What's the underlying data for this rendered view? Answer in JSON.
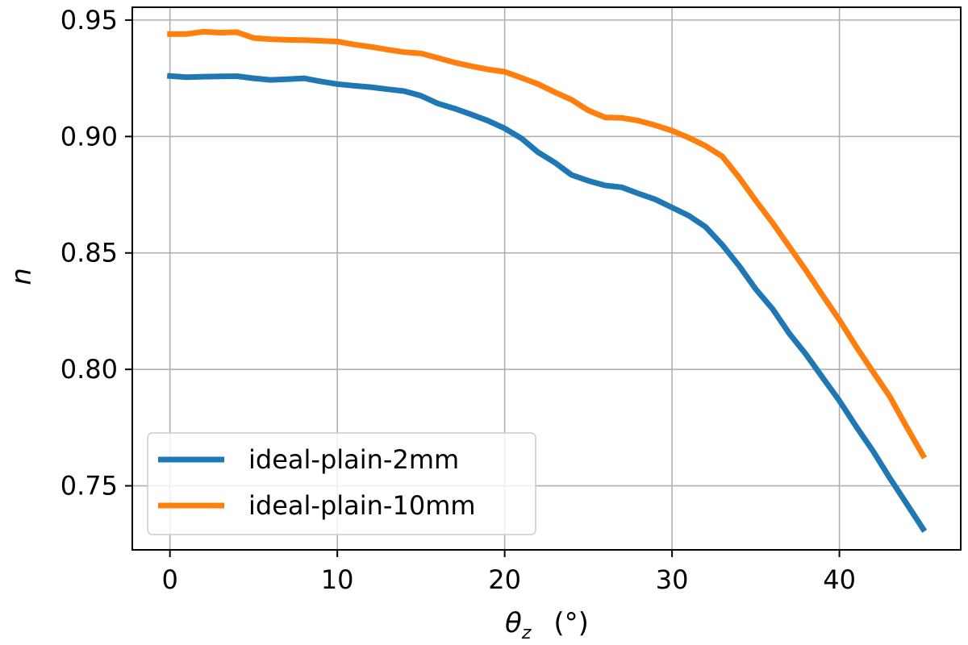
{
  "chart_data": {
    "type": "line",
    "xlabel_symbol": "θ",
    "xlabel_subscript": "z",
    "xlabel_unit": "(°)",
    "ylabel": "n",
    "xlim": [
      -2.25,
      47.25
    ],
    "ylim": [
      0.7225,
      0.9555
    ],
    "xticks": [
      0,
      10,
      20,
      30,
      40
    ],
    "yticks": [
      0.75,
      0.8,
      0.85,
      0.9,
      0.95
    ],
    "ytick_labels": [
      "0.75",
      "0.80",
      "0.85",
      "0.90",
      "0.95"
    ],
    "grid": true,
    "legend_position": "lower left",
    "x": [
      0,
      1,
      2,
      3,
      4,
      5,
      6,
      7,
      8,
      9,
      10,
      11,
      12,
      13,
      14,
      15,
      16,
      17,
      18,
      19,
      20,
      21,
      22,
      23,
      24,
      25,
      26,
      27,
      28,
      29,
      30,
      31,
      32,
      33,
      34,
      35,
      36,
      37,
      38,
      39,
      40,
      41,
      42,
      43,
      44,
      45
    ],
    "series": [
      {
        "name": "ideal-plain-2mm",
        "color": "#1f77b4",
        "values": [
          0.926,
          0.9255,
          0.9257,
          0.9258,
          0.9259,
          0.925,
          0.9243,
          0.9246,
          0.925,
          0.9237,
          0.9225,
          0.9218,
          0.9212,
          0.9203,
          0.9195,
          0.9175,
          0.9142,
          0.912,
          0.9095,
          0.9068,
          0.9035,
          0.8992,
          0.8932,
          0.8888,
          0.8835,
          0.881,
          0.879,
          0.8782,
          0.8755,
          0.873,
          0.8695,
          0.866,
          0.8612,
          0.8535,
          0.8445,
          0.8345,
          0.826,
          0.8155,
          0.8065,
          0.7965,
          0.7865,
          0.7755,
          0.765,
          0.7535,
          0.7425,
          0.7315
        ]
      },
      {
        "name": "ideal-plain-10mm",
        "color": "#ff7f0e",
        "values": [
          0.944,
          0.944,
          0.945,
          0.9446,
          0.9448,
          0.9423,
          0.9418,
          0.9415,
          0.9414,
          0.9411,
          0.9408,
          0.9395,
          0.9385,
          0.9373,
          0.9362,
          0.9357,
          0.9338,
          0.9318,
          0.9302,
          0.9288,
          0.9278,
          0.9252,
          0.9225,
          0.919,
          0.9158,
          0.9112,
          0.9082,
          0.908,
          0.9068,
          0.9048,
          0.9025,
          0.8995,
          0.896,
          0.8915,
          0.8825,
          0.8725,
          0.863,
          0.8528,
          0.8425,
          0.8318,
          0.8212,
          0.8098,
          0.799,
          0.7885,
          0.7755,
          0.763
        ]
      }
    ]
  }
}
